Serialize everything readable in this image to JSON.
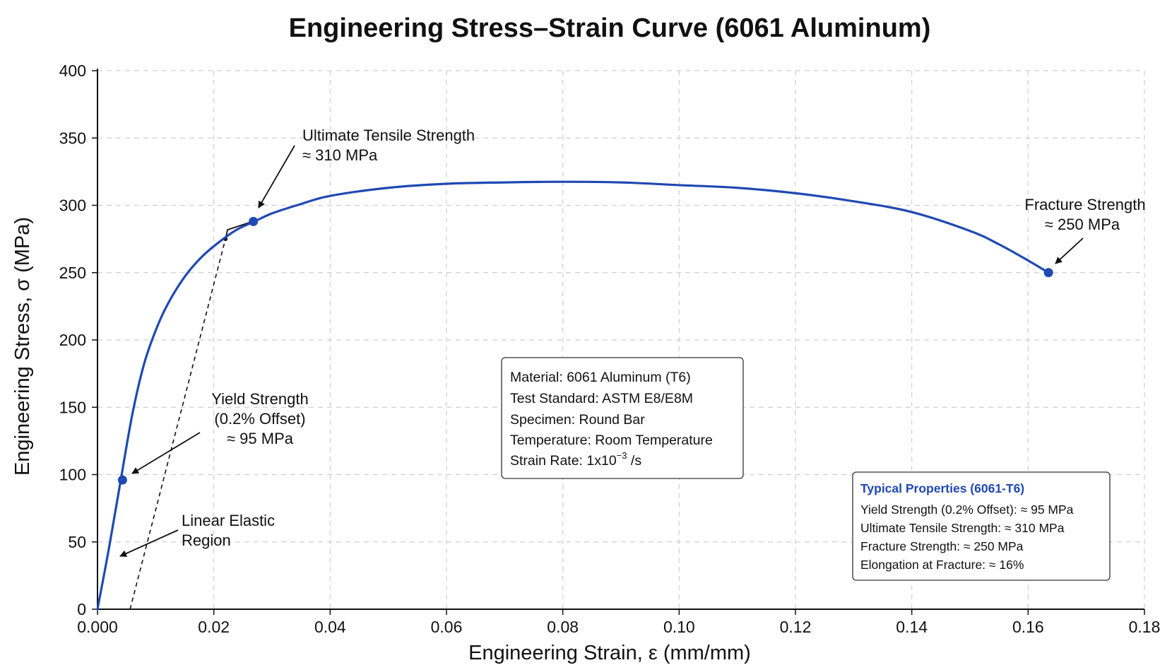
{
  "chart_data": {
    "type": "line",
    "title": "Engineering Stress–Strain Curve (6061 Aluminum)",
    "xlabel": "Engineering Strain, ε (mm/mm)",
    "ylabel": "Engineering Stress, σ (MPa)",
    "xlim": [
      0,
      0.18
    ],
    "ylim": [
      0,
      400
    ],
    "xticks": [
      "0.000",
      "0.02",
      "0.04",
      "0.06",
      "0.08",
      "0.10",
      "0.12",
      "0.14",
      "0.16",
      "0.18"
    ],
    "yticks": [
      "0",
      "50",
      "100",
      "150",
      "200",
      "250",
      "300",
      "350",
      "400"
    ],
    "grid": true,
    "series": [
      {
        "color": "#1f49b3",
        "x": [
          0,
          0.002,
          0.004,
          0.006,
          0.008,
          0.01,
          0.012,
          0.015,
          0.018,
          0.021,
          0.024,
          0.027,
          0.03,
          0.035,
          0.04,
          0.05,
          0.06,
          0.07,
          0.08,
          0.09,
          0.1,
          0.11,
          0.12,
          0.13,
          0.14,
          0.15,
          0.155,
          0.16,
          0.1635
        ],
        "y": [
          0,
          46,
          96,
          145,
          182,
          207,
          226,
          247,
          262,
          273,
          282,
          288,
          294,
          301,
          307,
          313,
          316,
          317,
          317.5,
          317,
          315,
          313,
          309,
          303,
          295,
          281,
          271,
          259,
          250
        ]
      }
    ],
    "offset_line": {
      "x": [
        0.0056,
        0.022
      ],
      "y": [
        0,
        275
      ]
    },
    "marked_points": [
      {
        "x": 0.0043,
        "y": 96
      },
      {
        "x": 0.0268,
        "y": 288
      },
      {
        "x": 0.1635,
        "y": 250
      }
    ],
    "annotations": [
      {
        "lines": [
          "Ultimate Tensile Strength",
          "≈ 310 MPa"
        ]
      },
      {
        "lines": [
          "Fracture Strength",
          "≈ 250 MPa"
        ]
      },
      {
        "lines": [
          "Yield Strength",
          "(0.2% Offset)",
          "≈ 95 MPa"
        ]
      },
      {
        "lines": [
          "Linear Elastic",
          "Region"
        ]
      }
    ],
    "info_box": {
      "lines": [
        "Material: 6061 Aluminum (T6)",
        "Test Standard: ASTM E8/E8M",
        "Specimen: Round Bar",
        "Temperature: Room Temperature"
      ],
      "strain_rate": {
        "prefix": "Strain Rate: 1x10",
        "exponent": "−3",
        "suffix": " /s"
      }
    },
    "properties_box": {
      "heading": "Typical Properties (6061-T6)",
      "lines": [
        "Yield Strength (0.2% Offset): ≈ 95 MPa",
        "Ultimate Tensile Strength: ≈ 310 MPa",
        "Fracture Strength: ≈ 250 MPa",
        "Elongation at Fracture: ≈ 16%"
      ]
    }
  }
}
